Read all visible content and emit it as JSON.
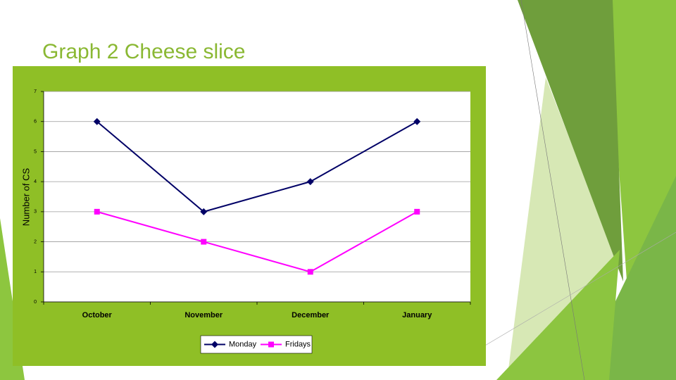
{
  "chart_data": {
    "type": "line",
    "title": "Graph 2 Cheese slice",
    "y_label": "Number of CS",
    "categories": [
      "October",
      "November",
      "December",
      "January"
    ],
    "series": [
      {
        "name": "Monday",
        "color": "#000066",
        "marker": "diamond",
        "values": [
          6,
          3,
          4,
          6
        ]
      },
      {
        "name": "Fridays",
        "color": "#ff00ff",
        "marker": "square",
        "values": [
          3,
          2,
          1,
          3
        ]
      }
    ],
    "ylim": [
      0,
      7
    ],
    "yticks": [
      0,
      1,
      2,
      3,
      4,
      5,
      6,
      7
    ],
    "grid": true,
    "legend": "bottom"
  }
}
